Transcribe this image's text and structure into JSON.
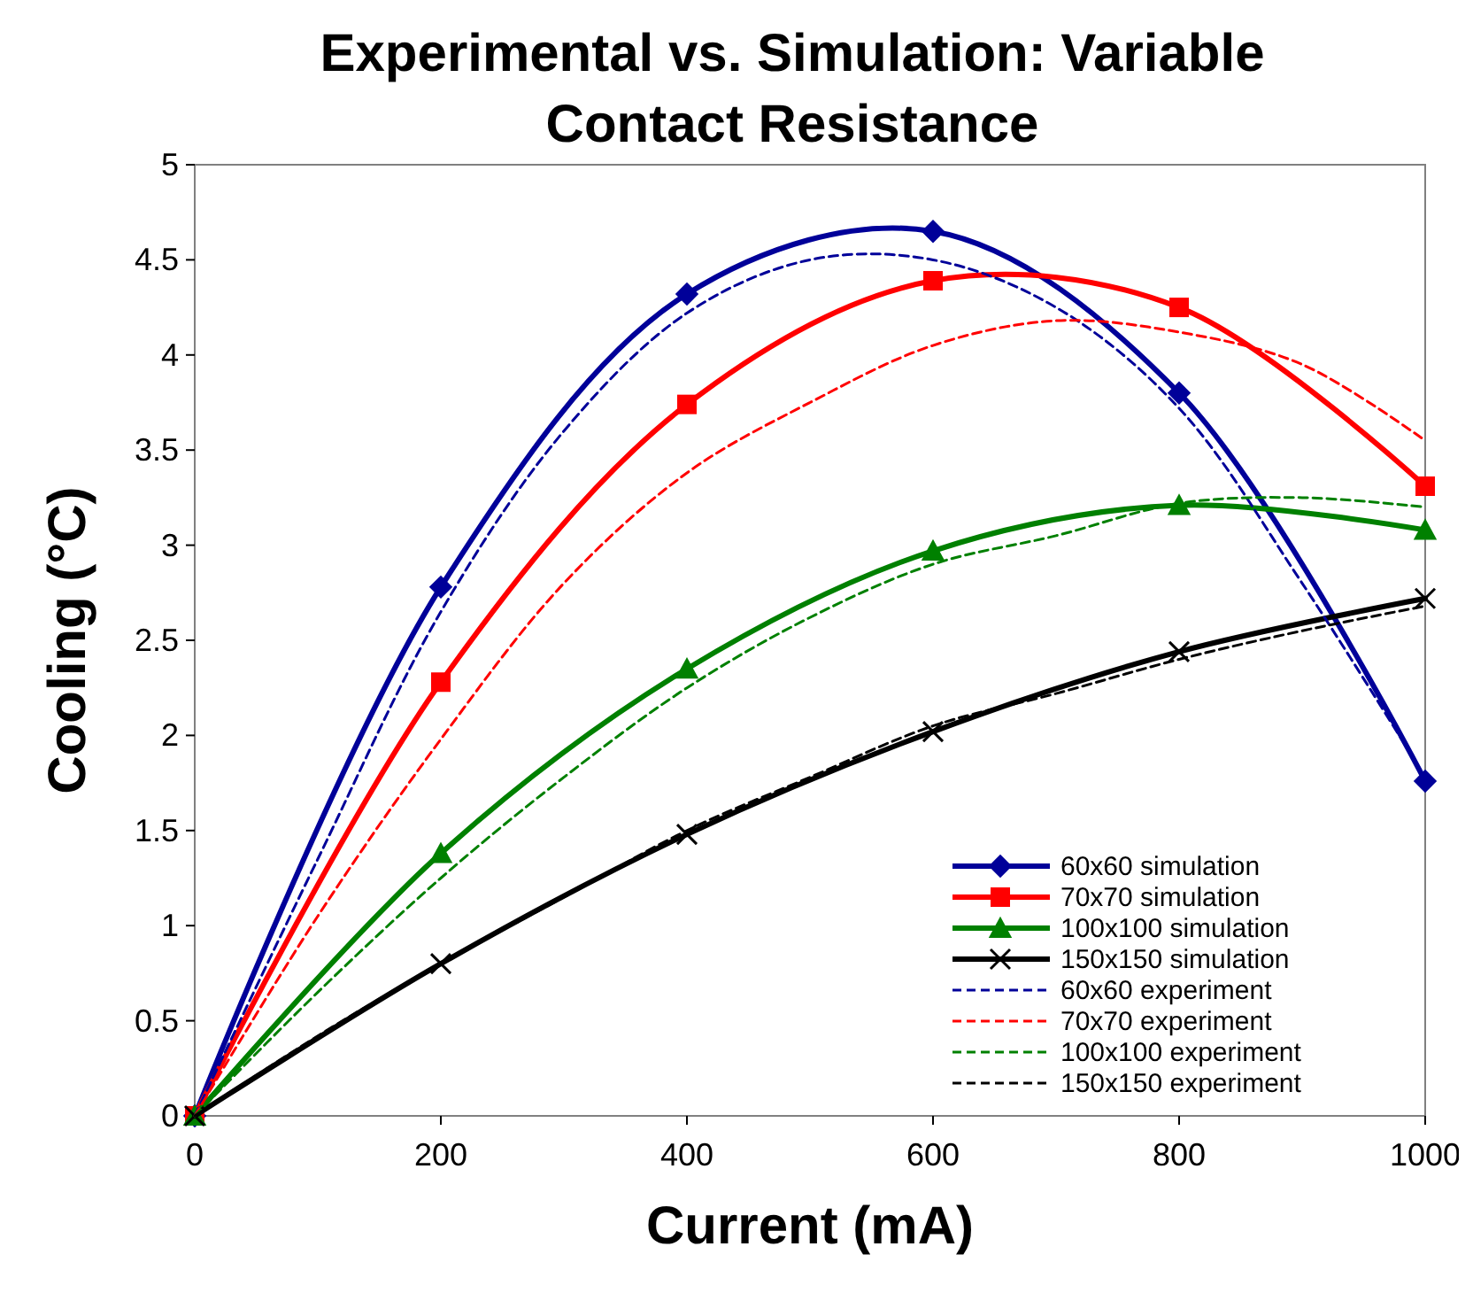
{
  "chart_data": {
    "type": "line",
    "title": "Experimental vs. Simulation: Variable Contact Resistance",
    "xlabel": "Current (mA)",
    "ylabel": "Cooling (°C)",
    "xlim": [
      0,
      1000
    ],
    "xticks": [
      0,
      200,
      400,
      600,
      800,
      1000
    ],
    "ylim": [
      0,
      5
    ],
    "yticks": [
      0,
      0.5,
      1,
      1.5,
      2,
      2.5,
      3,
      3.5,
      4,
      4.5,
      5
    ],
    "grid": false,
    "legend": "bottom right",
    "series": [
      {
        "name": "60x60 simulation",
        "color": "#000099",
        "marker": "diamond",
        "line_style": "solid",
        "x": [
          0,
          200,
          400,
          600,
          800,
          1000
        ],
        "values": [
          0,
          2.78,
          4.32,
          4.65,
          3.8,
          1.76
        ]
      },
      {
        "name": "70x70 simulation",
        "color": "#ff0000",
        "marker": "square",
        "line_style": "solid",
        "x": [
          0,
          200,
          400,
          600,
          800,
          1000
        ],
        "values": [
          0,
          2.28,
          3.74,
          4.39,
          4.25,
          3.31
        ]
      },
      {
        "name": "100x100 simulation",
        "color": "#008000",
        "marker": "triangle",
        "line_style": "solid",
        "x": [
          0,
          200,
          400,
          600,
          800,
          1000
        ],
        "values": [
          0,
          1.38,
          2.35,
          2.97,
          3.21,
          3.08
        ]
      },
      {
        "name": "150x150 simulation",
        "color": "#000000",
        "marker": "cross",
        "line_style": "solid",
        "x": [
          0,
          200,
          400,
          600,
          800,
          1000
        ],
        "values": [
          0,
          0.8,
          1.48,
          2.02,
          2.44,
          2.72
        ]
      },
      {
        "name": "60x60 experiment",
        "color": "#000099",
        "marker": "none",
        "line_style": "dashed",
        "x": [
          0,
          100,
          200,
          300,
          400,
          500,
          600,
          700,
          800,
          900,
          1000
        ],
        "values": [
          0,
          1.35,
          2.65,
          3.6,
          4.22,
          4.5,
          4.5,
          4.25,
          3.72,
          2.8,
          1.78
        ]
      },
      {
        "name": "70x70 experiment",
        "color": "#ff0000",
        "marker": "none",
        "line_style": "dashed",
        "x": [
          0,
          100,
          200,
          300,
          400,
          500,
          600,
          700,
          800,
          900,
          1000
        ],
        "values": [
          0,
          1.05,
          1.98,
          2.8,
          3.38,
          3.75,
          4.05,
          4.18,
          4.12,
          3.95,
          3.55
        ]
      },
      {
        "name": "100x100 experiment",
        "color": "#008000",
        "marker": "none",
        "line_style": "dashed",
        "x": [
          0,
          100,
          200,
          300,
          400,
          500,
          600,
          700,
          800,
          900,
          1000
        ],
        "values": [
          0,
          0.65,
          1.25,
          1.78,
          2.25,
          2.62,
          2.9,
          3.05,
          3.22,
          3.25,
          3.2
        ]
      },
      {
        "name": "150x150 experiment",
        "color": "#000000",
        "marker": "none",
        "line_style": "dashed",
        "x": [
          0,
          100,
          200,
          300,
          400,
          500,
          600,
          700,
          800,
          900,
          1000
        ],
        "values": [
          0,
          0.42,
          0.8,
          1.15,
          1.5,
          1.78,
          2.05,
          2.22,
          2.4,
          2.55,
          2.68
        ]
      }
    ]
  }
}
